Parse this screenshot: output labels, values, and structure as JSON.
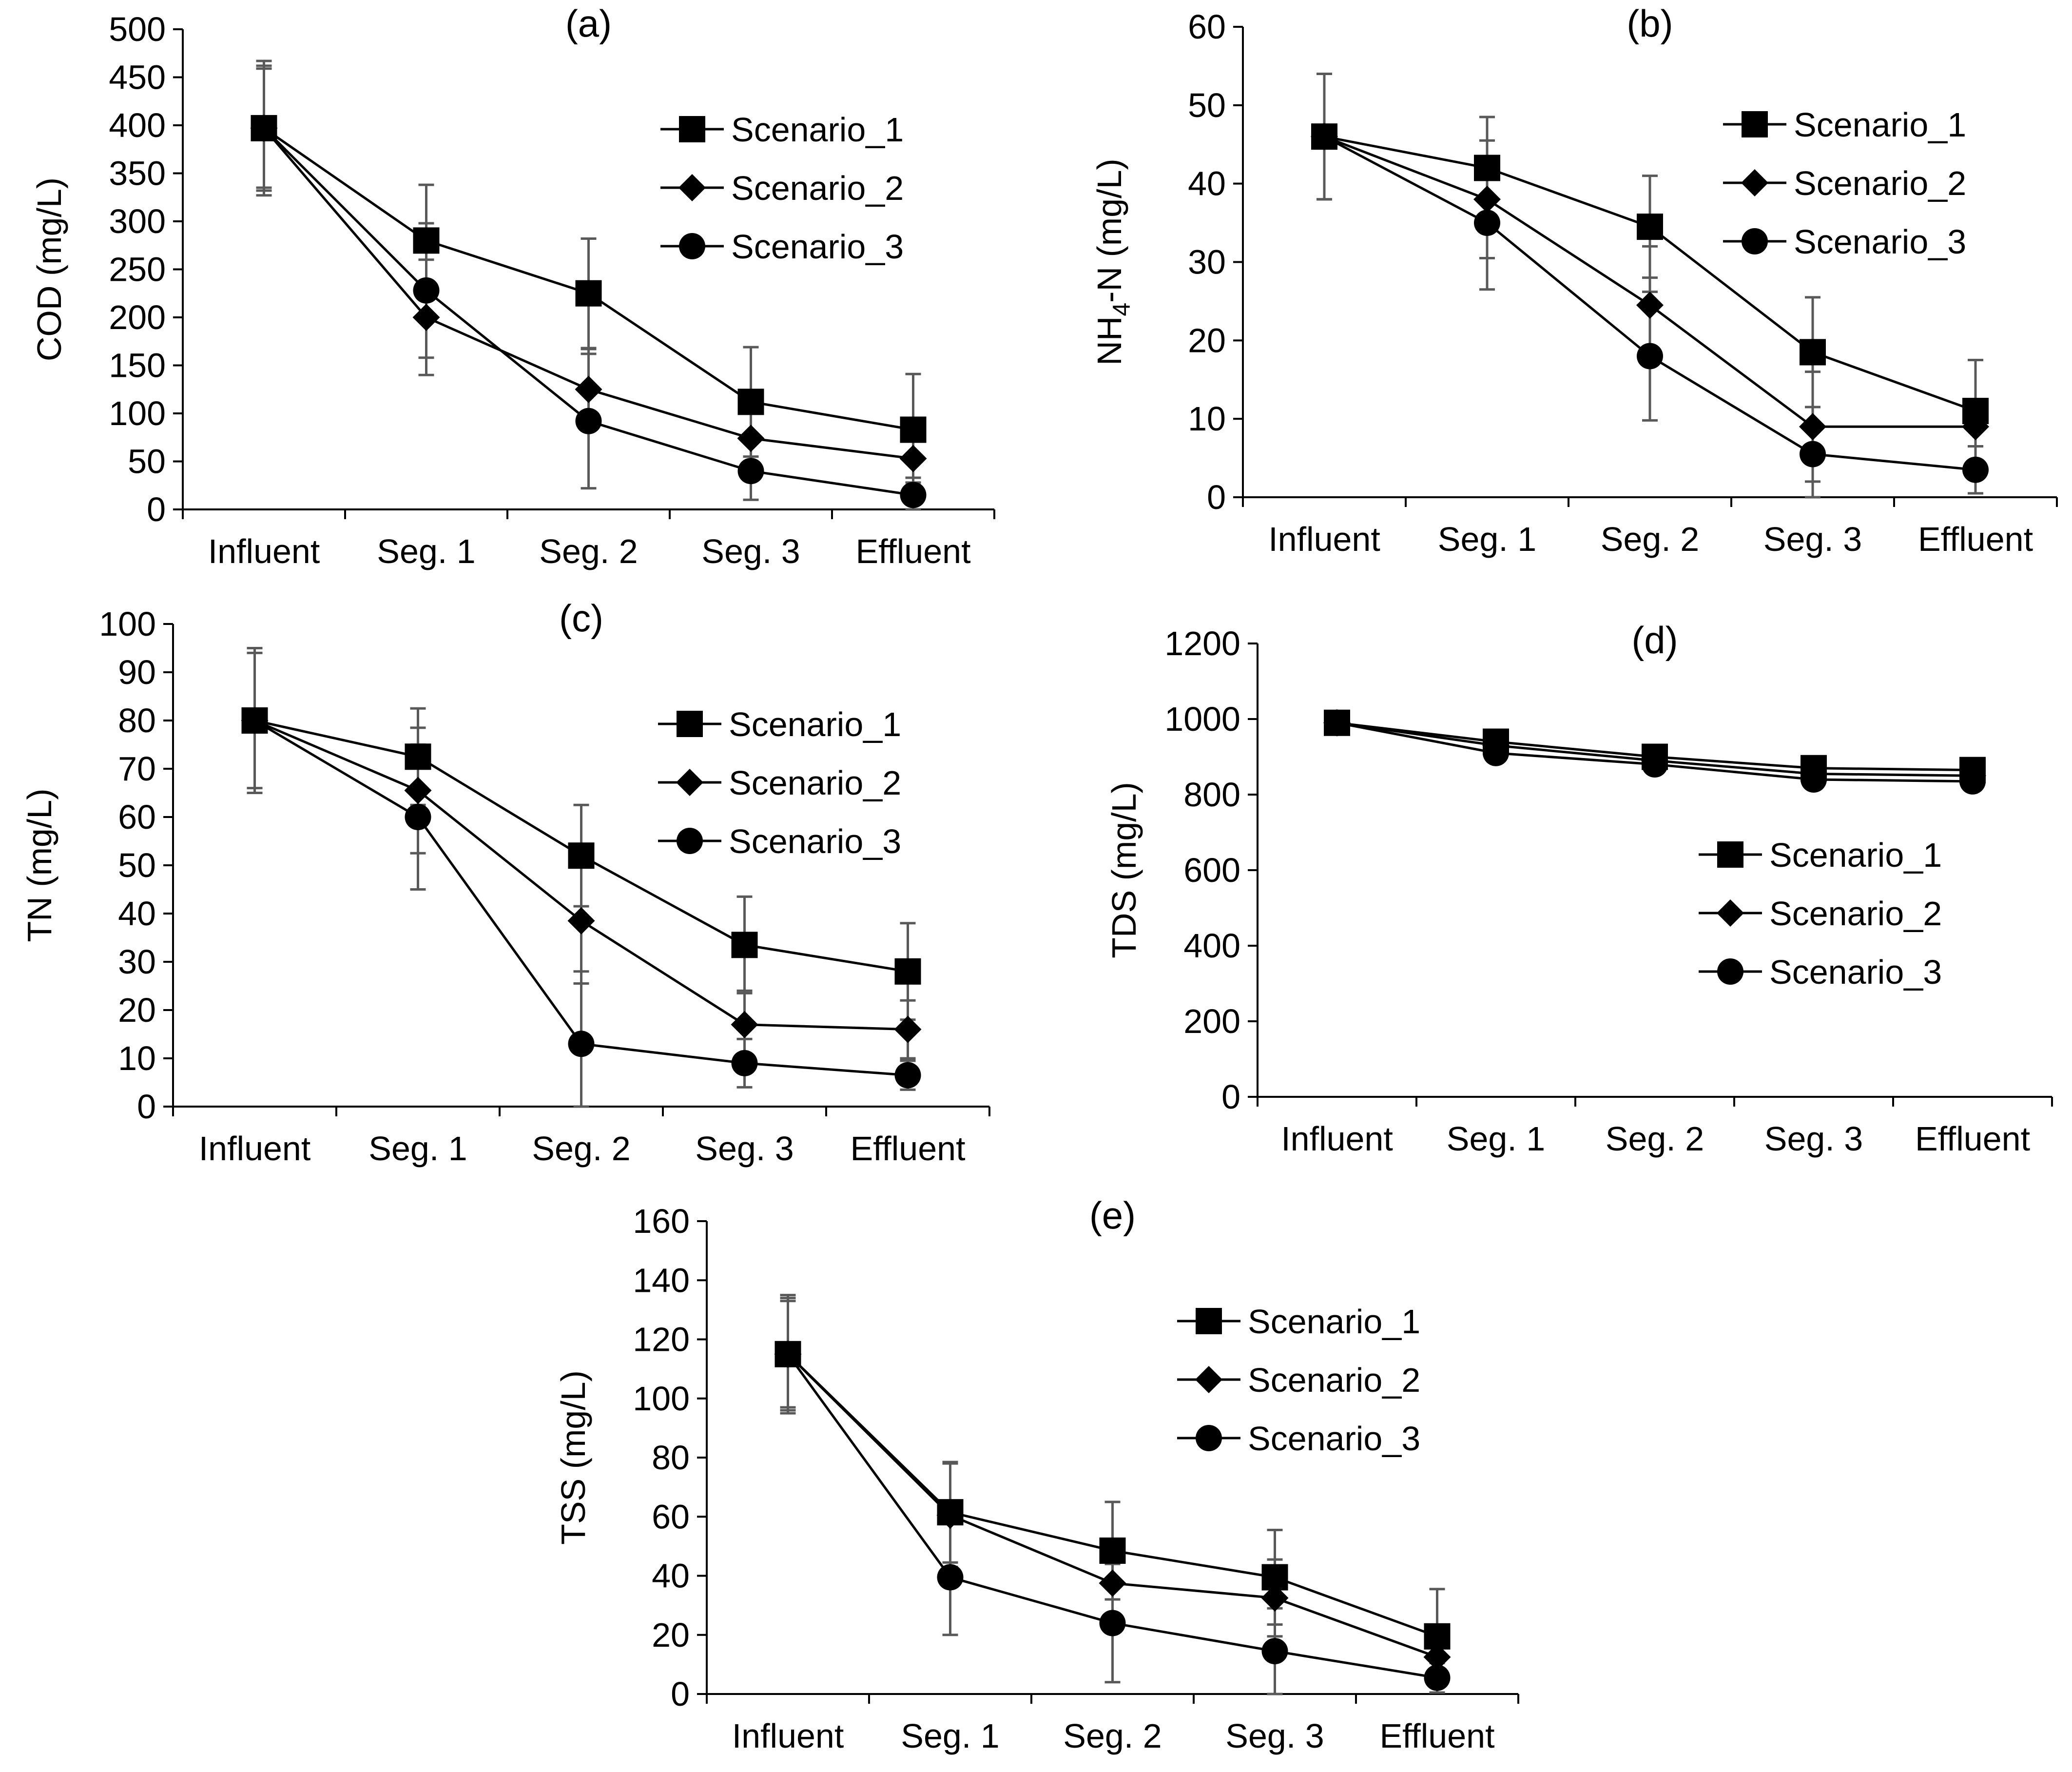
{
  "figure": {
    "categories": [
      "Influent",
      "Seg. 1",
      "Seg. 2",
      "Seg. 3",
      "Effluent"
    ],
    "series_names": [
      "Scenario_1",
      "Scenario_2",
      "Scenario_3"
    ],
    "series_markers": [
      "square",
      "diamond",
      "circle"
    ],
    "colors": {
      "line": "#000000",
      "marker": "#000000",
      "error_bar": "#595959",
      "axis": "#000000"
    }
  },
  "chart_data": [
    {
      "id": "a",
      "type": "line",
      "title": "(a)",
      "ylabel": "COD (mg/L)",
      "xlabel": "",
      "categories": [
        "Influent",
        "Seg. 1",
        "Seg. 2",
        "Seg. 3",
        "Effluent"
      ],
      "ylim": [
        0,
        500
      ],
      "yticks": [
        0,
        50,
        100,
        150,
        200,
        250,
        300,
        350,
        400,
        450,
        500
      ],
      "legend": "top-right",
      "series": [
        {
          "name": "Scenario_1",
          "marker": "square",
          "values": [
            397,
            280,
            225,
            112,
            83
          ],
          "errors": [
            70,
            58,
            57,
            57,
            58
          ]
        },
        {
          "name": "Scenario_2",
          "marker": "diamond",
          "values": [
            397,
            200,
            125,
            74,
            53
          ],
          "errors": [
            62,
            60,
            42,
            28,
            25
          ]
        },
        {
          "name": "Scenario_3",
          "marker": "circle",
          "values": [
            397,
            228,
            92,
            40,
            15
          ],
          "errors": [
            65,
            70,
            70,
            30,
            18
          ]
        }
      ]
    },
    {
      "id": "b",
      "type": "line",
      "title": "(b)",
      "ylabel": "NH4-N (mg/L)",
      "ylabel_parts": [
        "NH",
        "4",
        "-N (mg/L)"
      ],
      "xlabel": "",
      "categories": [
        "Influent",
        "Seg. 1",
        "Seg. 2",
        "Seg. 3",
        "Effluent"
      ],
      "ylim": [
        0,
        60
      ],
      "yticks": [
        0,
        10,
        20,
        30,
        40,
        50,
        60
      ],
      "legend": "top-right",
      "series": [
        {
          "name": "Scenario_1",
          "marker": "square",
          "values": [
            46,
            42,
            34.5,
            18.5,
            11
          ],
          "errors": [
            8,
            6.5,
            6.5,
            7,
            6.5
          ]
        },
        {
          "name": "Scenario_2",
          "marker": "diamond",
          "values": [
            46,
            38,
            24.5,
            9,
            9
          ],
          "errors": [
            8,
            7.5,
            7.5,
            7,
            8.5
          ]
        },
        {
          "name": "Scenario_3",
          "marker": "circle",
          "values": [
            46,
            35,
            18,
            5.5,
            3.5
          ],
          "errors": [
            8,
            8.5,
            8.2,
            6,
            3
          ]
        }
      ]
    },
    {
      "id": "c",
      "type": "line",
      "title": "(c)",
      "ylabel": "TN (mg/L)",
      "xlabel": "",
      "categories": [
        "Influent",
        "Seg. 1",
        "Seg. 2",
        "Seg. 3",
        "Effluent"
      ],
      "ylim": [
        0,
        100
      ],
      "yticks": [
        0,
        10,
        20,
        30,
        40,
        50,
        60,
        70,
        80,
        90,
        100
      ],
      "legend": "top-right",
      "series": [
        {
          "name": "Scenario_1",
          "marker": "square",
          "values": [
            80,
            72.5,
            52,
            33.5,
            28
          ],
          "errors": [
            15,
            10,
            10.5,
            10,
            10
          ]
        },
        {
          "name": "Scenario_2",
          "marker": "diamond",
          "values": [
            80,
            65.5,
            38.5,
            17,
            16
          ],
          "errors": [
            14,
            13,
            13,
            7,
            6
          ]
        },
        {
          "name": "Scenario_3",
          "marker": "circle",
          "values": [
            80,
            60,
            13,
            9,
            6.5
          ],
          "errors": [
            15,
            15,
            15,
            5,
            3
          ]
        }
      ]
    },
    {
      "id": "d",
      "type": "line",
      "title": "(d)",
      "ylabel": "TDS (mg/L)",
      "xlabel": "",
      "categories": [
        "Influent",
        "Seg. 1",
        "Seg. 2",
        "Seg. 3",
        "Effluent"
      ],
      "ylim": [
        0,
        1200
      ],
      "yticks": [
        0,
        200,
        400,
        600,
        800,
        1000,
        1200
      ],
      "legend": "middle-right",
      "series": [
        {
          "name": "Scenario_1",
          "marker": "square",
          "values": [
            990,
            940,
            900,
            870,
            865
          ],
          "errors": [
            0,
            0,
            0,
            0,
            0
          ]
        },
        {
          "name": "Scenario_2",
          "marker": "diamond",
          "values": [
            990,
            930,
            890,
            855,
            850
          ],
          "errors": [
            0,
            0,
            0,
            0,
            0
          ]
        },
        {
          "name": "Scenario_3",
          "marker": "circle",
          "values": [
            990,
            910,
            880,
            840,
            835
          ],
          "errors": [
            0,
            0,
            0,
            0,
            0
          ]
        }
      ]
    },
    {
      "id": "e",
      "type": "line",
      "title": "(e)",
      "ylabel": "TSS (mg/L)",
      "xlabel": "",
      "categories": [
        "Influent",
        "Seg. 1",
        "Seg. 2",
        "Seg. 3",
        "Effluent"
      ],
      "ylim": [
        0,
        160
      ],
      "yticks": [
        0,
        20,
        40,
        60,
        80,
        100,
        120,
        140,
        160
      ],
      "legend": "top-right",
      "series": [
        {
          "name": "Scenario_1",
          "marker": "square",
          "values": [
            115,
            61.5,
            48.5,
            39.5,
            19.5
          ],
          "errors": [
            20,
            17,
            16.5,
            16,
            16
          ]
        },
        {
          "name": "Scenario_2",
          "marker": "diamond",
          "values": [
            115,
            60.5,
            37.5,
            32.5,
            12.5
          ],
          "errors": [
            19,
            17.5,
            12,
            13,
            10
          ]
        },
        {
          "name": "Scenario_3",
          "marker": "circle",
          "values": [
            115,
            39.5,
            24,
            14.5,
            5.5
          ],
          "errors": [
            18,
            19.5,
            20,
            14.5,
            5
          ]
        }
      ]
    }
  ]
}
